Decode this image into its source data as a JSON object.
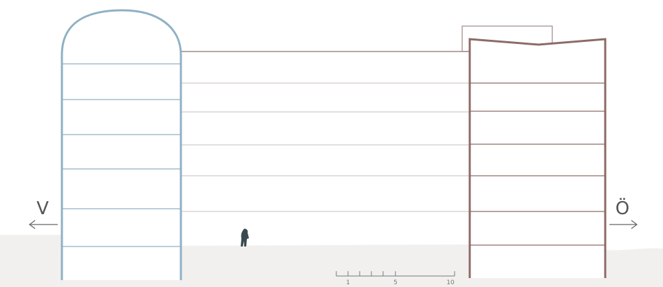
{
  "directions": {
    "west": "V",
    "east": "Ö"
  },
  "scale": {
    "labels": [
      "1",
      "5",
      "10"
    ]
  }
}
